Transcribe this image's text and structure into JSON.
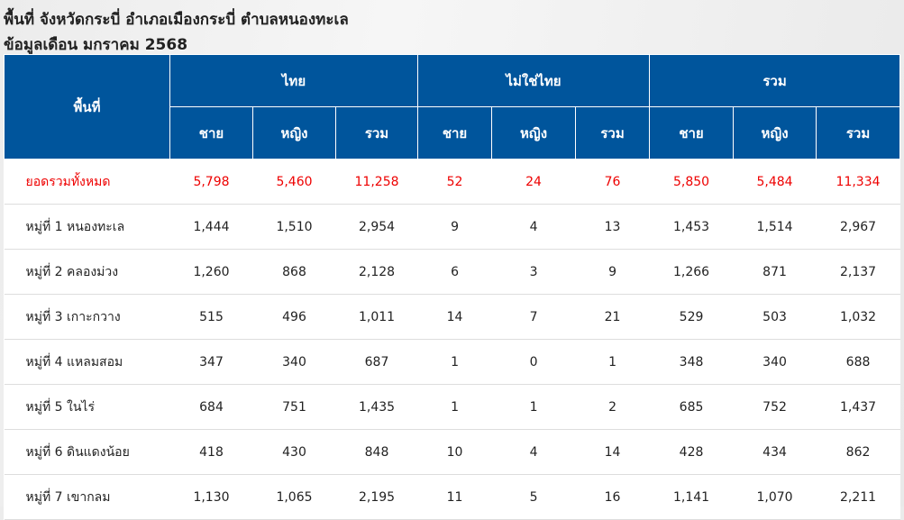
{
  "title_line1": "พื้นที่ จังหวัดกระบี่ อำเภอเมืองกระบี่ ตำบลหนองทะเล",
  "title_line2": "ข้อมูลเดือน มกราคม 2568",
  "headers": {
    "area": "พื้นที่",
    "thai": "ไทย",
    "non_thai": "ไม่ใช่ไทย",
    "total": "รวม",
    "male": "ชาย",
    "female": "หญิง",
    "sum": "รวม"
  },
  "rows": [
    {
      "name": "ยอดรวมทั้งหมด",
      "v": [
        "5,798",
        "5,460",
        "11,258",
        "52",
        "24",
        "76",
        "5,850",
        "5,484",
        "11,334"
      ]
    },
    {
      "name": "หมู่ที่ 1 หนองทะเล",
      "v": [
        "1,444",
        "1,510",
        "2,954",
        "9",
        "4",
        "13",
        "1,453",
        "1,514",
        "2,967"
      ]
    },
    {
      "name": "หมู่ที่ 2 คลองม่วง",
      "v": [
        "1,260",
        "868",
        "2,128",
        "6",
        "3",
        "9",
        "1,266",
        "871",
        "2,137"
      ]
    },
    {
      "name": "หมู่ที่ 3 เกาะกวาง",
      "v": [
        "515",
        "496",
        "1,011",
        "14",
        "7",
        "21",
        "529",
        "503",
        "1,032"
      ]
    },
    {
      "name": "หมู่ที่ 4 แหลมสอม",
      "v": [
        "347",
        "340",
        "687",
        "1",
        "0",
        "1",
        "348",
        "340",
        "688"
      ]
    },
    {
      "name": "หมู่ที่ 5 ในไร่",
      "v": [
        "684",
        "751",
        "1,435",
        "1",
        "1",
        "2",
        "685",
        "752",
        "1,437"
      ]
    },
    {
      "name": "หมู่ที่ 6 ดินแดงน้อย",
      "v": [
        "418",
        "430",
        "848",
        "10",
        "4",
        "14",
        "428",
        "434",
        "862"
      ]
    },
    {
      "name": "หมู่ที่ 7 เขากลม",
      "v": [
        "1,130",
        "1,065",
        "2,195",
        "11",
        "5",
        "16",
        "1,141",
        "1,070",
        "2,211"
      ]
    }
  ],
  "colors": {
    "header": "#00559c",
    "total": "#ee0000"
  }
}
